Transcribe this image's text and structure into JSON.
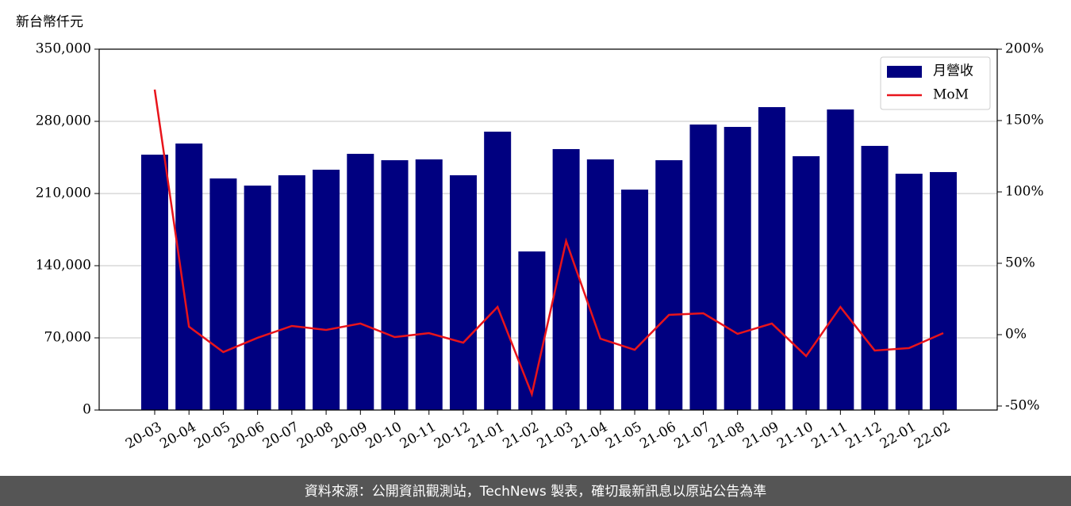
{
  "chart_data": {
    "type": "bar-line",
    "y_axis_label": "新台幣仟元",
    "footer": "資料來源：公開資訊觀測站，TechNews 製表，確切最新訊息以原站公告為準",
    "categories": [
      "20-03",
      "20-04",
      "20-05",
      "20-06",
      "20-07",
      "20-08",
      "20-09",
      "20-10",
      "20-11",
      "20-12",
      "21-01",
      "21-02",
      "21-03",
      "21-04",
      "21-05",
      "21-06",
      "21-07",
      "21-08",
      "21-09",
      "21-10",
      "21-11",
      "21-12",
      "22-01",
      "22-02"
    ],
    "series": [
      {
        "name": "月營收",
        "type": "bar",
        "color": "#000080",
        "values": [
          247700,
          258500,
          224600,
          217700,
          227700,
          233100,
          248500,
          242300,
          243100,
          227700,
          270000,
          153800,
          253100,
          243100,
          213800,
          242300,
          276900,
          274600,
          293800,
          246200,
          291500,
          256200,
          229200,
          230800
        ]
      },
      {
        "name": "MoM",
        "type": "line",
        "axis": "y2",
        "color": "#e8141b",
        "values": [
          171.7,
          5.6,
          -12.2,
          -2.2,
          6.1,
          3.3,
          7.8,
          -1.7,
          1.1,
          -5.6,
          19.4,
          -41.7,
          65.6,
          -2.8,
          -10.6,
          13.9,
          15,
          0.6,
          7.8,
          -15,
          19.4,
          -11.1,
          -9.4,
          1.1
        ]
      }
    ],
    "ylim": [
      0,
      350000
    ],
    "yticks": [
      {
        "value": 0,
        "label": "0"
      },
      {
        "value": 70000,
        "label": "70,000"
      },
      {
        "value": 140000,
        "label": "140,000"
      },
      {
        "value": 210000,
        "label": "210,000"
      },
      {
        "value": 280000,
        "label": "280,000"
      },
      {
        "value": 350000,
        "label": "350,000"
      }
    ],
    "y2lim": [
      -52.8,
      200
    ],
    "y2ticks": [
      {
        "value": -50,
        "label": "-50%"
      },
      {
        "value": 0,
        "label": "0%"
      },
      {
        "value": 50,
        "label": "50%"
      },
      {
        "value": 100,
        "label": "100%"
      },
      {
        "value": 150,
        "label": "150%"
      },
      {
        "value": 200,
        "label": "200%"
      }
    ],
    "grid": true,
    "legend": "upper right"
  }
}
